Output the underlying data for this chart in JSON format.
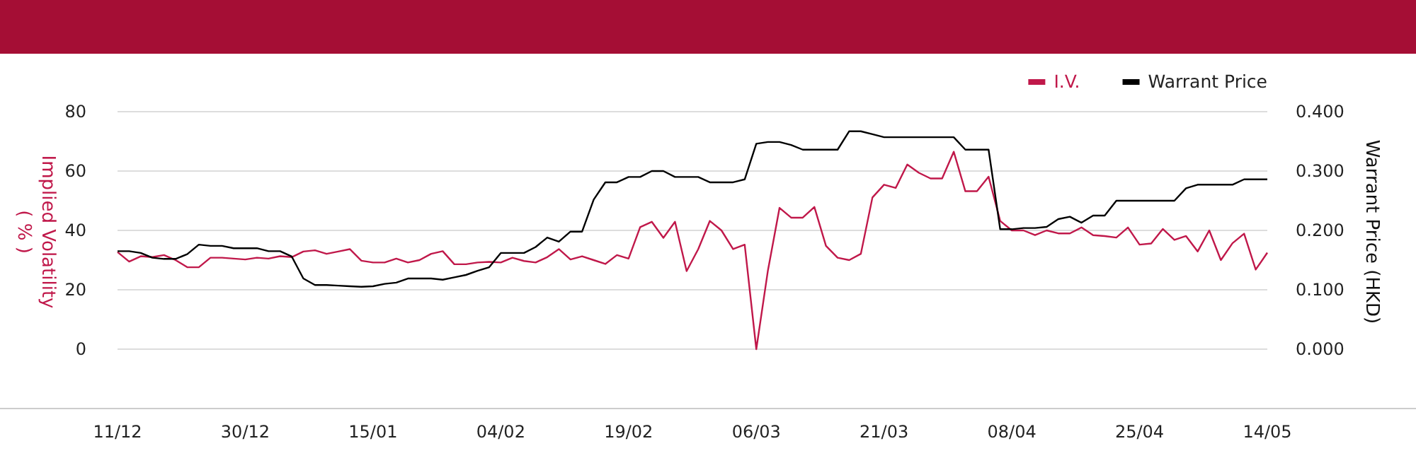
{
  "chart_data": {
    "type": "line",
    "categories": [
      "11/12",
      null,
      null,
      null,
      null,
      null,
      null,
      null,
      null,
      null,
      null,
      "30/12",
      null,
      null,
      null,
      null,
      null,
      null,
      null,
      null,
      null,
      null,
      "15/01",
      null,
      null,
      null,
      null,
      null,
      null,
      null,
      null,
      null,
      null,
      "04/02",
      null,
      null,
      null,
      null,
      null,
      null,
      null,
      null,
      null,
      null,
      "19/02",
      null,
      null,
      null,
      null,
      null,
      null,
      null,
      null,
      null,
      null,
      "06/03",
      null,
      null,
      null,
      null,
      null,
      null,
      null,
      null,
      null,
      null,
      "21/03",
      null,
      null,
      null,
      null,
      null,
      null,
      null,
      null,
      null,
      null,
      "08/04",
      null,
      null,
      null,
      null,
      null,
      null,
      null,
      null,
      null,
      null,
      "25/04",
      null,
      null,
      null,
      null,
      null,
      null,
      null,
      null,
      null,
      null,
      "14/05"
    ],
    "series": [
      {
        "name": "I.V.",
        "color": "#c0184a",
        "values": [
          32.7,
          29.5,
          31.3,
          31.0,
          31.7,
          30.0,
          27.6,
          27.6,
          30.8,
          30.8,
          30.5,
          30.2,
          30.8,
          30.5,
          31.3,
          31.0,
          32.9,
          33.3,
          32.1,
          32.9,
          33.7,
          29.8,
          29.2,
          29.2,
          30.5,
          29.2,
          30.0,
          32.1,
          33.0,
          28.6,
          28.6,
          29.2,
          29.4,
          29.2,
          30.8,
          29.7,
          29.2,
          31.0,
          33.7,
          30.2,
          31.3,
          30.0,
          28.7,
          31.7,
          30.5,
          41.1,
          42.9,
          37.5,
          42.9,
          26.3,
          33.7,
          43.2,
          40.0,
          33.7,
          35.2,
          0,
          26.5,
          47.6,
          44.3,
          44.3,
          47.9,
          34.8,
          30.8,
          30.0,
          32.1,
          51.1,
          55.4,
          54.3,
          62.2,
          59.4,
          57.5,
          57.5,
          66.5,
          53.2,
          53.2,
          58.1,
          43.2,
          40.0,
          40.0,
          38.4,
          40.0,
          39.0,
          39.0,
          41.0,
          38.4,
          38.1,
          37.6,
          41.0,
          35.2,
          35.6,
          40.5,
          36.8,
          38.1,
          32.9,
          40.0,
          30.0,
          35.7,
          38.9,
          26.8,
          32.5
        ]
      },
      {
        "name": "Warrant Price",
        "color": "#000000",
        "axis": "y2",
        "values": [
          0.165,
          0.165,
          0.162,
          0.154,
          0.152,
          0.152,
          0.16,
          0.176,
          0.174,
          0.174,
          0.17,
          0.17,
          0.17,
          0.165,
          0.165,
          0.156,
          0.119,
          0.108,
          0.108,
          0.107,
          0.106,
          0.105,
          0.106,
          0.11,
          0.112,
          0.119,
          0.119,
          0.119,
          0.117,
          0.121,
          0.125,
          0.132,
          0.138,
          0.162,
          0.162,
          0.162,
          0.172,
          0.188,
          0.181,
          0.198,
          0.198,
          0.252,
          0.281,
          0.281,
          0.29,
          0.29,
          0.3,
          0.3,
          0.29,
          0.29,
          0.29,
          0.281,
          0.281,
          0.281,
          0.286,
          0.346,
          0.349,
          0.349,
          0.344,
          0.336,
          0.336,
          0.336,
          0.336,
          0.367,
          0.367,
          0.362,
          0.357,
          0.357,
          0.357,
          0.357,
          0.357,
          0.357,
          0.357,
          0.336,
          0.336,
          0.336,
          0.202,
          0.202,
          0.204,
          0.204,
          0.206,
          0.219,
          0.223,
          0.213,
          0.225,
          0.225,
          0.25,
          0.25,
          0.25,
          0.25,
          0.25,
          0.25,
          0.271,
          0.277,
          0.277,
          0.277,
          0.277,
          0.286,
          0.286,
          0.286
        ]
      }
    ],
    "ylabel": "Implied Volatility\n( % )",
    "y2label": "Warrant Price (HKD)",
    "ylim": [
      -20,
      80
    ],
    "yticks": [
      {
        "value": -20,
        "label": null
      },
      0,
      20,
      40,
      60,
      80
    ],
    "y2lim": [
      -0.1,
      0.4
    ],
    "y2ticks": [
      {
        "value": -0.1,
        "label": null
      },
      {
        "value": 0,
        "label": "0.000"
      },
      {
        "value": 0.1,
        "label": "0.100"
      },
      {
        "value": 0.2,
        "label": "0.200"
      },
      {
        "value": 0.3,
        "label": "0.300"
      },
      {
        "value": 0.4,
        "label": "0.400"
      }
    ],
    "grid": "y",
    "legend": "top right",
    "marker": "none",
    "line_style": "solid"
  }
}
